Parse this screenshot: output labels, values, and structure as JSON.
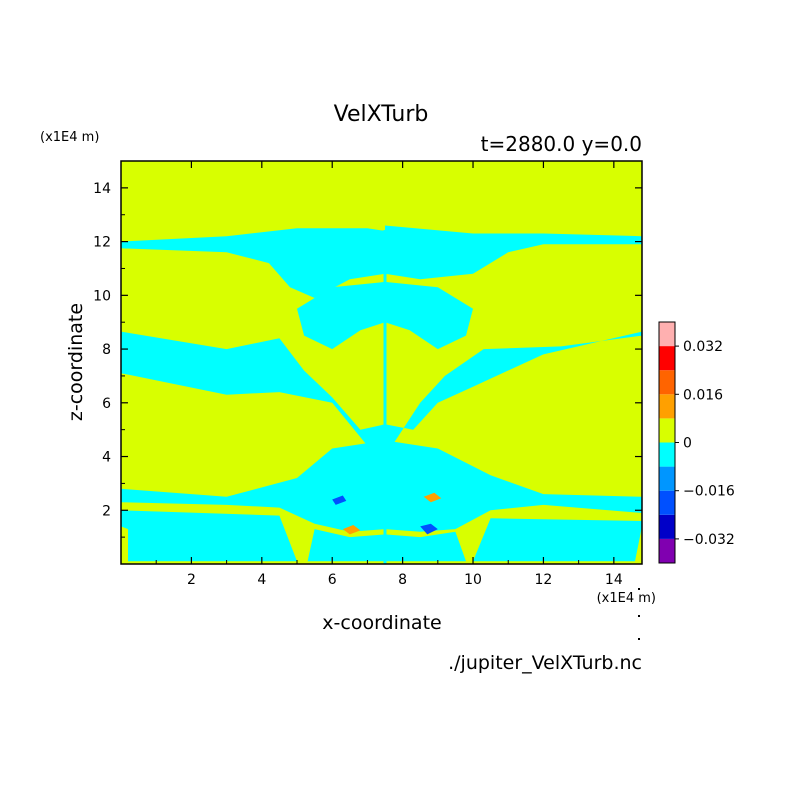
{
  "chart_data": {
    "type": "heatmap",
    "title": "VelXTurb",
    "subtitle": "t=2880.0 y=0.0",
    "xlabel": "x-coordinate",
    "ylabel": "z-coordinate",
    "x_units": "(x1E4 m)",
    "z_units": "(x1E4 m)",
    "filename": "./jupiter_VelXTurb.nc",
    "xlim": [
      0,
      14.8
    ],
    "ylim": [
      0,
      15
    ],
    "x_ticks": [
      2,
      4,
      6,
      8,
      10,
      12,
      14
    ],
    "y_ticks": [
      2,
      4,
      6,
      8,
      10,
      12,
      14
    ],
    "colorbar": {
      "range": [
        -0.04,
        0.04
      ],
      "tick_values": [
        0.032,
        0.016,
        0,
        -0.016,
        -0.032
      ],
      "tick_labels": [
        "0.032",
        "0.016",
        "0",
        "-0.016",
        "-0.032"
      ],
      "levels": [
        {
          "from": -0.04,
          "to": -0.032,
          "color": "#8000b0"
        },
        {
          "from": -0.032,
          "to": -0.024,
          "color": "#0000c8"
        },
        {
          "from": -0.024,
          "to": -0.016,
          "color": "#0050ff"
        },
        {
          "from": -0.016,
          "to": -0.008,
          "color": "#0096ff"
        },
        {
          "from": -0.008,
          "to": 0.0,
          "color": "#00ffff"
        },
        {
          "from": 0.0,
          "to": 0.008,
          "color": "#d8ff00"
        },
        {
          "from": 0.008,
          "to": 0.016,
          "color": "#ffa000"
        },
        {
          "from": 0.016,
          "to": 0.024,
          "color": "#ff6400"
        },
        {
          "from": 0.024,
          "to": 0.032,
          "color": "#ff0000"
        },
        {
          "from": 0.032,
          "to": 0.04,
          "color": "#ffb0b0"
        }
      ]
    },
    "background_level": "0 to 0.008",
    "cyan_regions_description": "negative-turbulence bands and plume structure",
    "regions": [
      {
        "shape": "band",
        "points": [
          [
            0,
            11.75
          ],
          [
            3.0,
            11.6
          ],
          [
            4.2,
            11.2
          ],
          [
            4.8,
            10.3
          ],
          [
            5.5,
            9.9
          ],
          [
            6.5,
            10.6
          ],
          [
            7.5,
            10.8
          ],
          [
            7.5,
            12.4
          ],
          [
            7.0,
            12.5
          ],
          [
            5.0,
            12.5
          ],
          [
            3.0,
            12.2
          ],
          [
            0,
            12.0
          ]
        ],
        "level": 4
      },
      {
        "shape": "band",
        "points": [
          [
            7.5,
            12.6
          ],
          [
            10.0,
            12.3
          ],
          [
            12.0,
            12.3
          ],
          [
            14.8,
            12.2
          ],
          [
            14.8,
            11.9
          ],
          [
            12.0,
            11.9
          ],
          [
            11.0,
            11.6
          ],
          [
            10.0,
            10.8
          ],
          [
            8.5,
            10.6
          ],
          [
            7.5,
            10.8
          ]
        ],
        "level": 4
      },
      {
        "shape": "band",
        "points": [
          [
            0,
            8.65
          ],
          [
            3.0,
            8.0
          ],
          [
            4.5,
            8.4
          ],
          [
            5.2,
            7.2
          ],
          [
            6.0,
            6.2
          ],
          [
            6.8,
            5.0
          ],
          [
            7.5,
            5.2
          ],
          [
            7.5,
            4.0
          ],
          [
            7.0,
            4.4
          ],
          [
            6.0,
            6.0
          ],
          [
            4.5,
            6.4
          ],
          [
            3.0,
            6.3
          ],
          [
            0,
            7.1
          ]
        ],
        "level": 4
      },
      {
        "shape": "band",
        "points": [
          [
            7.5,
            5.2
          ],
          [
            8.3,
            5.0
          ],
          [
            9.0,
            6.0
          ],
          [
            10.0,
            6.6
          ],
          [
            12.0,
            7.8
          ],
          [
            14.8,
            8.65
          ],
          [
            14.8,
            8.5
          ],
          [
            12.5,
            8.1
          ],
          [
            10.3,
            8.0
          ],
          [
            9.2,
            7.0
          ],
          [
            8.5,
            6.0
          ],
          [
            7.5,
            4.0
          ]
        ],
        "level": 4
      },
      {
        "shape": "band",
        "points": [
          [
            5.0,
            9.5
          ],
          [
            6.0,
            10.3
          ],
          [
            7.5,
            10.5
          ],
          [
            9.0,
            10.3
          ],
          [
            10.0,
            9.5
          ],
          [
            9.8,
            8.5
          ],
          [
            9.0,
            8.0
          ],
          [
            8.2,
            8.7
          ],
          [
            7.5,
            9.0
          ],
          [
            6.8,
            8.7
          ],
          [
            6.0,
            8.0
          ],
          [
            5.2,
            8.5
          ]
        ],
        "level": 4
      },
      {
        "shape": "band",
        "points": [
          [
            0,
            2.8
          ],
          [
            3.0,
            2.5
          ],
          [
            5.0,
            3.2
          ],
          [
            6.0,
            4.3
          ],
          [
            7.5,
            4.6
          ],
          [
            9.0,
            4.3
          ],
          [
            10.5,
            3.3
          ],
          [
            12.0,
            2.6
          ],
          [
            14.8,
            2.5
          ],
          [
            14.8,
            1.9
          ],
          [
            12.0,
            2.2
          ],
          [
            10.5,
            2.0
          ],
          [
            9.5,
            1.3
          ],
          [
            8.5,
            1.2
          ],
          [
            7.5,
            1.3
          ],
          [
            6.5,
            1.2
          ],
          [
            5.5,
            1.5
          ],
          [
            4.5,
            2.1
          ],
          [
            3.0,
            2.2
          ],
          [
            0,
            2.3
          ]
        ],
        "level": 4
      },
      {
        "shape": "band",
        "points": [
          [
            0,
            2.0
          ],
          [
            4.5,
            1.8
          ],
          [
            5.0,
            0.1
          ],
          [
            0.2,
            0.1
          ],
          [
            0.2,
            1.3
          ],
          [
            0,
            1.4
          ]
        ],
        "level": 4
      },
      {
        "shape": "band",
        "points": [
          [
            10.5,
            1.7
          ],
          [
            14.8,
            1.6
          ],
          [
            14.8,
            1.4
          ],
          [
            14.6,
            0.1
          ],
          [
            10.0,
            0.1
          ]
        ],
        "level": 4
      },
      {
        "shape": "band",
        "points": [
          [
            5.5,
            1.3
          ],
          [
            6.5,
            1.0
          ],
          [
            7.5,
            1.1
          ],
          [
            8.5,
            1.0
          ],
          [
            9.5,
            1.2
          ],
          [
            9.8,
            0.1
          ],
          [
            5.3,
            0.1
          ]
        ],
        "level": 4
      },
      {
        "shape": "spot",
        "points": [
          [
            6.3,
            1.3
          ],
          [
            6.6,
            1.45
          ],
          [
            6.8,
            1.25
          ],
          [
            6.5,
            1.1
          ]
        ],
        "level": 6
      },
      {
        "shape": "spot",
        "points": [
          [
            8.5,
            1.4
          ],
          [
            8.8,
            1.5
          ],
          [
            9.0,
            1.3
          ],
          [
            8.7,
            1.1
          ]
        ],
        "level": 2
      },
      {
        "shape": "spot",
        "points": [
          [
            6.0,
            2.4
          ],
          [
            6.3,
            2.55
          ],
          [
            6.4,
            2.35
          ],
          [
            6.1,
            2.2
          ]
        ],
        "level": 2
      },
      {
        "shape": "spot",
        "points": [
          [
            8.6,
            2.5
          ],
          [
            8.9,
            2.65
          ],
          [
            9.1,
            2.45
          ],
          [
            8.8,
            2.3
          ]
        ],
        "level": 6
      }
    ]
  }
}
